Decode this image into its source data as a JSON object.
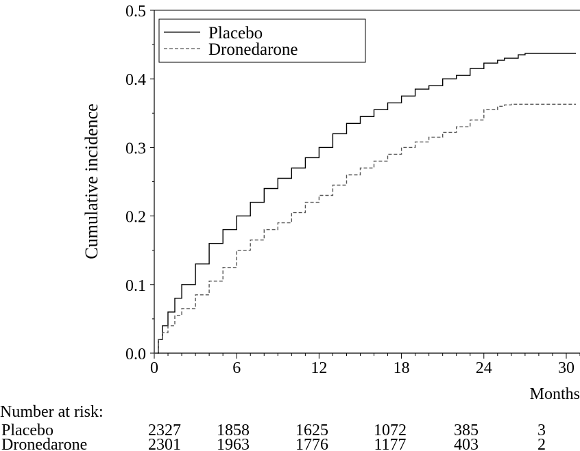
{
  "chart_data": {
    "type": "line",
    "title": "",
    "xlabel": "Months",
    "ylabel": "Cumulative incidence",
    "xlim": [
      0,
      31
    ],
    "ylim": [
      0,
      0.5
    ],
    "xticks": [
      0,
      6,
      12,
      18,
      24,
      30
    ],
    "yticks": [
      0.0,
      0.1,
      0.2,
      0.3,
      0.4,
      0.5
    ],
    "xtick_labels": [
      "0",
      "6",
      "12",
      "18",
      "24",
      "30"
    ],
    "ytick_labels": [
      "0.0",
      "0.1",
      "0.2",
      "0.3",
      "0.4",
      "0.5"
    ],
    "grid": false,
    "legend_position": "top-left",
    "series": [
      {
        "name": "Placebo",
        "line_style": "solid",
        "color": "#000000",
        "x": [
          0,
          0.3,
          0.6,
          1,
          1.5,
          2,
          3,
          4,
          5,
          6,
          7,
          8,
          9,
          10,
          11,
          12,
          13,
          14,
          15,
          16,
          17,
          18,
          19,
          20,
          21,
          22,
          23,
          24,
          25,
          25.5,
          26,
          26.5,
          27,
          28,
          29,
          30,
          30.7
        ],
        "values": [
          0,
          0.02,
          0.04,
          0.06,
          0.08,
          0.1,
          0.13,
          0.16,
          0.18,
          0.2,
          0.22,
          0.24,
          0.255,
          0.27,
          0.285,
          0.3,
          0.32,
          0.335,
          0.345,
          0.355,
          0.365,
          0.375,
          0.385,
          0.39,
          0.4,
          0.405,
          0.415,
          0.423,
          0.427,
          0.43,
          0.43,
          0.435,
          0.437,
          0.437,
          0.437,
          0.437,
          0.437
        ]
      },
      {
        "name": "Dronedarone",
        "line_style": "dashed",
        "color": "#555555",
        "x": [
          0,
          0.3,
          0.6,
          1,
          1.5,
          2,
          3,
          4,
          5,
          6,
          7,
          8,
          9,
          10,
          11,
          12,
          13,
          14,
          15,
          16,
          17,
          18,
          19,
          20,
          21,
          22,
          23,
          24,
          25,
          25.5,
          26,
          27,
          28,
          29,
          30,
          30.7
        ],
        "values": [
          0,
          0.02,
          0.03,
          0.04,
          0.055,
          0.065,
          0.085,
          0.105,
          0.125,
          0.15,
          0.165,
          0.18,
          0.19,
          0.205,
          0.22,
          0.23,
          0.245,
          0.26,
          0.27,
          0.28,
          0.29,
          0.3,
          0.308,
          0.315,
          0.322,
          0.33,
          0.34,
          0.355,
          0.36,
          0.362,
          0.363,
          0.363,
          0.363,
          0.363,
          0.363,
          0.363
        ]
      }
    ]
  },
  "risk_table": {
    "title": "Number at risk:",
    "rows": [
      {
        "label": "Placebo",
        "values": [
          "2327",
          "1858",
          "1625",
          "1072",
          "385",
          "3"
        ]
      },
      {
        "label": "Dronedarone",
        "values": [
          "2301",
          "1963",
          "1776",
          "1177",
          "403",
          "2"
        ]
      }
    ]
  }
}
